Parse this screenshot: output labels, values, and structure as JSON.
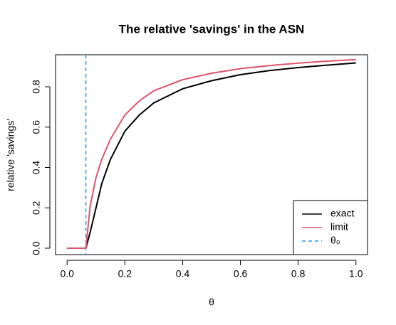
{
  "chart_data": {
    "type": "line",
    "title": "The relative 'savings' in the ASN",
    "xlabel": "θ",
    "ylabel": "relative 'savings'",
    "x": [
      0,
      0.05,
      0.065,
      0.08,
      0.1,
      0.12,
      0.15,
      0.2,
      0.25,
      0.3,
      0.4,
      0.5,
      0.6,
      0.7,
      0.8,
      0.9,
      1.0
    ],
    "series": [
      {
        "name": "exact",
        "color": "#000000",
        "values": [
          0,
          0,
          0,
          0.08,
          0.2,
          0.32,
          0.44,
          0.58,
          0.66,
          0.72,
          0.79,
          0.83,
          0.86,
          0.88,
          0.895,
          0.907,
          0.918
        ]
      },
      {
        "name": "limit",
        "color": "#DF536B",
        "values": [
          0,
          0,
          0,
          0.21,
          0.35,
          0.44,
          0.54,
          0.66,
          0.73,
          0.78,
          0.835,
          0.867,
          0.89,
          0.905,
          0.917,
          0.927,
          0.935
        ]
      }
    ],
    "vline": {
      "name": "θ₀",
      "x": 0.065,
      "color": "#2297E6"
    },
    "xlim": [
      -0.04,
      1.04
    ],
    "ylim": [
      -0.0317,
      0.9586
    ],
    "xticks": [
      {
        "value": 0,
        "label": "0.0"
      },
      0.2,
      0.4,
      0.6,
      0.8,
      {
        "value": 1,
        "label": "1.0"
      }
    ],
    "yticks": [
      {
        "value": 0,
        "label": "0.0"
      },
      0.2,
      0.4,
      0.6,
      0.8
    ],
    "legend": "bottom-right"
  }
}
